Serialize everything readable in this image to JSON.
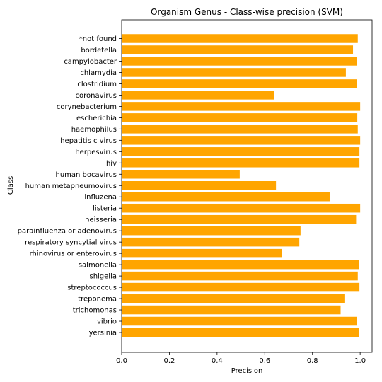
{
  "chart_data": {
    "type": "bar",
    "orientation": "horizontal",
    "title": "Organism Genus - Class-wise precision (SVM)",
    "xlabel": "Precision",
    "ylabel": "Class",
    "xlim": [
      0,
      1.05
    ],
    "xticks": [
      "0.0",
      "0.2",
      "0.4",
      "0.6",
      "0.8",
      "1.0"
    ],
    "grid": false,
    "legend": "none",
    "bar_color": "#ffa500",
    "categories": [
      "*not found",
      "bordetella",
      "campylobacter",
      "chlamydia",
      "clostridium",
      "coronavirus",
      "corynebacterium",
      "escherichia",
      "haemophilus",
      "hepatitis c virus",
      "herpesvirus",
      "hiv",
      "human bocavirus",
      "human metapneumovirus",
      "influzena",
      "listeria",
      "neisseria",
      "parainfluenza or adenovirus",
      "respiratory syncytial virus",
      "rhinovirus or enterovirus",
      "salmonella",
      "shigella",
      "streptococcus",
      "treponema",
      "trichomonas",
      "vibrio",
      "yersinia"
    ],
    "values": [
      0.99,
      0.97,
      0.985,
      0.94,
      0.987,
      0.64,
      1.0,
      0.988,
      0.99,
      1.0,
      0.997,
      0.997,
      0.495,
      0.647,
      0.872,
      1.0,
      0.983,
      0.75,
      0.745,
      0.673,
      0.995,
      0.99,
      0.997,
      0.934,
      0.918,
      0.985,
      0.995
    ]
  }
}
